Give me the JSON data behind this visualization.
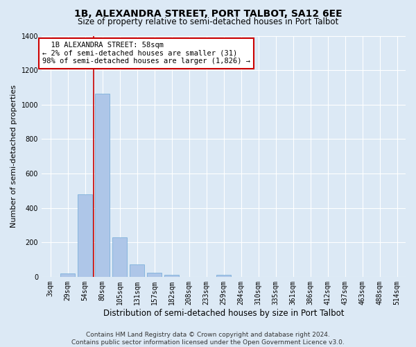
{
  "title": "1B, ALEXANDRA STREET, PORT TALBOT, SA12 6EE",
  "subtitle": "Size of property relative to semi-detached houses in Port Talbot",
  "xlabel": "Distribution of semi-detached houses by size in Port Talbot",
  "ylabel": "Number of semi-detached properties",
  "footer_line1": "Contains HM Land Registry data © Crown copyright and database right 2024.",
  "footer_line2": "Contains public sector information licensed under the Open Government Licence v3.0.",
  "bin_labels": [
    "3sqm",
    "29sqm",
    "54sqm",
    "80sqm",
    "105sqm",
    "131sqm",
    "157sqm",
    "182sqm",
    "208sqm",
    "233sqm",
    "259sqm",
    "284sqm",
    "310sqm",
    "335sqm",
    "361sqm",
    "386sqm",
    "412sqm",
    "437sqm",
    "463sqm",
    "488sqm",
    "514sqm"
  ],
  "bar_heights": [
    0,
    20,
    480,
    1065,
    230,
    70,
    25,
    10,
    0,
    0,
    10,
    0,
    0,
    0,
    0,
    0,
    0,
    0,
    0,
    0,
    0
  ],
  "bar_color": "#aec6e8",
  "bar_edge_color": "#6fa8d6",
  "property_bin_index": 2,
  "property_size": 58,
  "property_label": "1B ALEXANDRA STREET: 58sqm",
  "pct_smaller": 2,
  "count_smaller": 31,
  "pct_larger": 98,
  "count_larger": 1826,
  "annotation_box_color": "#cc0000",
  "vline_color": "#cc0000",
  "ylim": [
    0,
    1400
  ],
  "yticks": [
    0,
    200,
    400,
    600,
    800,
    1000,
    1200,
    1400
  ],
  "background_color": "#dce9f5",
  "plot_background_color": "#dce9f5",
  "grid_color": "#ffffff",
  "title_fontsize": 10,
  "subtitle_fontsize": 8.5,
  "xlabel_fontsize": 8.5,
  "ylabel_fontsize": 8,
  "tick_fontsize": 7,
  "annotation_fontsize": 7.5,
  "footer_fontsize": 6.5
}
